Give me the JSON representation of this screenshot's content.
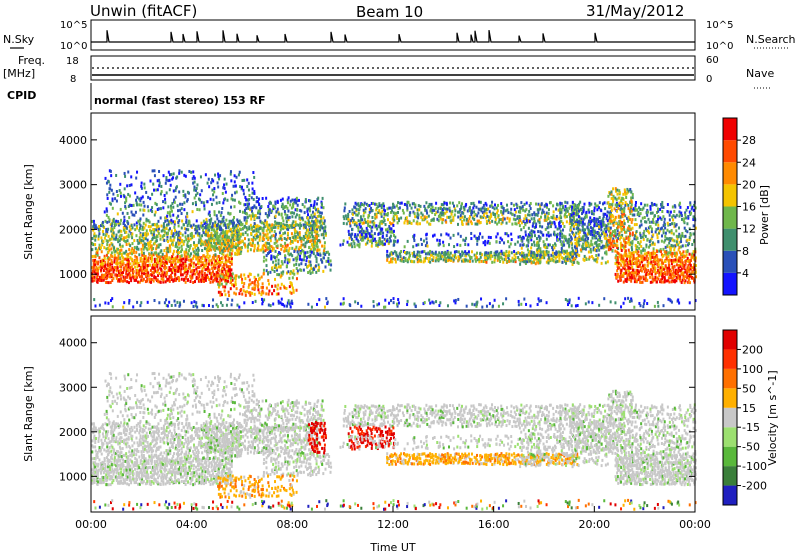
{
  "header": {
    "station": "Unwin (fitACF)",
    "beam": "Beam 10",
    "date": "31/May/2012"
  },
  "noise_panel": {
    "left_label": "N.Sky",
    "left_ticks": [
      "10^5",
      "10^0"
    ],
    "right_label": "N.Search",
    "right_ticks": [
      "10^5",
      "10^0"
    ]
  },
  "freq_panel": {
    "left_label_top": "Freq.",
    "left_label_unit": "[MHz]",
    "left_ticks": [
      "18",
      "8"
    ],
    "right_label": "Nave",
    "right_ticks": [
      "60",
      "0"
    ]
  },
  "cpid_label": "CPID",
  "mode_text": "normal (fast stereo) 153 RF",
  "x_axis": {
    "label": "Time UT",
    "ticks": [
      "00:00",
      "04:00",
      "08:00",
      "12:00",
      "16:00",
      "20:00",
      "00:00"
    ]
  },
  "chart_data": [
    {
      "type": "heatmap",
      "name": "power",
      "ylabel": "Slant Range [km]",
      "yticks": [
        1000,
        2000,
        3000,
        4000
      ],
      "ylim": [
        200,
        4600
      ],
      "xlim_hours": [
        0,
        24
      ],
      "colorbar": {
        "label": "Power [dB]",
        "ticks": [
          "4",
          "8",
          "12",
          "16",
          "20",
          "24",
          "28"
        ],
        "colors": [
          "#1414ff",
          "#2a50b8",
          "#3f8f6e",
          "#6fb74b",
          "#f4c400",
          "#ff8a00",
          "#ff4a00",
          "#f00000"
        ]
      }
    },
    {
      "type": "heatmap",
      "name": "velocity",
      "ylabel": "Slant Range [km]",
      "yticks": [
        1000,
        2000,
        3000,
        4000
      ],
      "ylim": [
        200,
        4600
      ],
      "xlim_hours": [
        0,
        24
      ],
      "colorbar": {
        "label": "Velocity [m s^-1]",
        "ticks": [
          "200",
          "100",
          "50",
          "15",
          "-15",
          "-50",
          "-100",
          "-200"
        ],
        "colors": [
          "#2020c0",
          "#3a7f3a",
          "#59b83b",
          "#9ce070",
          "#c8c8c8",
          "#ffb000",
          "#ff7000",
          "#ff3000",
          "#e00000"
        ]
      }
    }
  ]
}
